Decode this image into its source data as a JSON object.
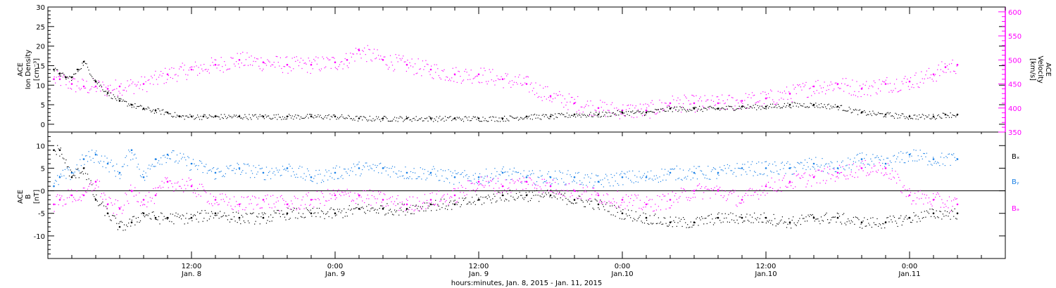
{
  "chart_data": [
    {
      "type": "scatter",
      "panel": "top",
      "title": "",
      "xlabel": "hours:minutes, Jan.  8, 2015 - Jan. 11, 2015",
      "ylabel_lines": [
        "ACE",
        "Ion Density",
        "[cm⁻³]"
      ],
      "ylabel2_lines": [
        "ACE",
        "Velocity",
        "[km/s]"
      ],
      "xlim_hours": [
        0,
        80
      ],
      "ylim": [
        -2,
        30
      ],
      "ylim2": [
        350,
        610
      ],
      "yticks": [
        "0",
        "5",
        "10",
        "15",
        "20",
        "25",
        "30"
      ],
      "yticks2": [
        "350",
        "400",
        "450",
        "500",
        "550",
        "600"
      ],
      "series": [
        {
          "color": "#000000",
          "axis": "left",
          "x": [
            0.5,
            1,
            1.5,
            2,
            2.5,
            3,
            4,
            5,
            6,
            7,
            8,
            9,
            10,
            11,
            12,
            13,
            14,
            16,
            18,
            20,
            22,
            24,
            26,
            28,
            30,
            32,
            34,
            36,
            38,
            40,
            42,
            44,
            46,
            48,
            50,
            52,
            54,
            56,
            58,
            60,
            62,
            64,
            66,
            68,
            70,
            72,
            74,
            75,
            76
          ],
          "y": [
            14,
            13,
            12,
            12,
            14,
            16,
            11,
            8,
            6,
            5,
            4,
            3.5,
            3,
            2,
            2,
            2,
            2,
            2,
            2,
            2,
            2,
            2,
            1.5,
            1.5,
            1.5,
            1.5,
            1.5,
            1.5,
            1.5,
            2,
            2,
            2.5,
            2.5,
            3,
            3,
            4,
            4,
            4,
            4.5,
            4.5,
            5,
            5,
            4.5,
            3,
            2.5,
            2,
            2,
            2.5,
            2.5
          ]
        },
        {
          "color": "#ff00ff",
          "axis": "right",
          "x": [
            0.5,
            1,
            2,
            3,
            4,
            5,
            6,
            8,
            10,
            12,
            14,
            16,
            18,
            20,
            22,
            24,
            25,
            26,
            28,
            30,
            32,
            34,
            36,
            38,
            40,
            42,
            44,
            46,
            48,
            50,
            52,
            54,
            56,
            58,
            60,
            62,
            64,
            66,
            68,
            70,
            72,
            74,
            75,
            76
          ],
          "y": [
            460,
            460,
            450,
            445,
            445,
            440,
            445,
            450,
            470,
            480,
            490,
            500,
            495,
            490,
            490,
            495,
            500,
            520,
            500,
            490,
            480,
            470,
            470,
            460,
            450,
            425,
            410,
            400,
            395,
            395,
            410,
            410,
            410,
            415,
            420,
            430,
            445,
            450,
            440,
            450,
            455,
            470,
            485,
            490
          ]
        }
      ]
    },
    {
      "type": "scatter",
      "panel": "bottom",
      "title": "",
      "xlabel": "hours:minutes, Jan.  8, 2015 - Jan. 11, 2015",
      "ylabel_lines": [
        "ACE",
        "B",
        "[nT]"
      ],
      "xlim_hours": [
        0,
        80
      ],
      "ylim": [
        -15,
        13
      ],
      "yticks": [
        "-10",
        "-5",
        "0",
        "5",
        "10"
      ],
      "zero_line": true,
      "series": [
        {
          "name": "Bx",
          "color": "#000000",
          "x": [
            0.5,
            1,
            2,
            3,
            4,
            5,
            6,
            7,
            8,
            9,
            10,
            12,
            14,
            16,
            18,
            20,
            22,
            24,
            26,
            28,
            30,
            32,
            34,
            36,
            38,
            40,
            42,
            44,
            46,
            48,
            50,
            52,
            54,
            56,
            58,
            60,
            62,
            64,
            66,
            68,
            70,
            72,
            74,
            76
          ],
          "y": [
            9,
            9,
            3,
            5,
            -2,
            -5,
            -8,
            -7,
            -5,
            -6,
            -6,
            -6,
            -5,
            -6,
            -6,
            -5,
            -5,
            -5,
            -4,
            -4,
            -4,
            -3,
            -3,
            -2,
            -1,
            -1,
            -1,
            -2,
            -3,
            -5,
            -6,
            -7,
            -7,
            -6,
            -6,
            -6,
            -7,
            -6,
            -6,
            -7,
            -7,
            -6,
            -5,
            -5
          ]
        },
        {
          "name": "By",
          "color": "#1a80e6",
          "x": [
            0.5,
            1,
            2,
            3,
            4,
            5,
            6,
            7,
            8,
            9,
            10,
            12,
            14,
            16,
            18,
            20,
            22,
            24,
            26,
            28,
            30,
            32,
            34,
            36,
            38,
            40,
            42,
            44,
            46,
            48,
            50,
            52,
            54,
            56,
            58,
            60,
            62,
            64,
            66,
            68,
            70,
            72,
            74,
            76
          ],
          "y": [
            1,
            3,
            4,
            7,
            8,
            6,
            4,
            9,
            3,
            7,
            8,
            6,
            4,
            5,
            4,
            5,
            3,
            4,
            5,
            5,
            4,
            4,
            3,
            3,
            4,
            3,
            3,
            3,
            2,
            3,
            3,
            4,
            4,
            4,
            5,
            5,
            5,
            6,
            5,
            7,
            6,
            8,
            7,
            7
          ]
        },
        {
          "name": "Bz",
          "color": "#ff00ff",
          "x": [
            0.5,
            1,
            2,
            3,
            4,
            5,
            6,
            7,
            8,
            9,
            10,
            12,
            14,
            16,
            18,
            20,
            22,
            24,
            26,
            28,
            30,
            32,
            34,
            36,
            38,
            40,
            42,
            44,
            46,
            48,
            50,
            52,
            54,
            56,
            58,
            60,
            62,
            64,
            66,
            68,
            70,
            72,
            74,
            76
          ],
          "y": [
            -3,
            -2,
            -1,
            -1,
            2,
            -3,
            -4,
            0,
            -2,
            -1,
            2,
            1,
            -2,
            -3,
            -2,
            -3,
            -2,
            -1,
            -1,
            -2,
            -3,
            -2,
            -1,
            2,
            1,
            2,
            1,
            0,
            -1,
            -2,
            -3,
            -2,
            0,
            0,
            -2,
            1,
            2,
            3,
            4,
            5,
            5,
            -1,
            -2,
            -3
          ]
        }
      ],
      "legend": [
        "Bₓ",
        "Bᵧ",
        "Bₔ"
      ]
    }
  ],
  "xaxis": {
    "ticks": [
      {
        "hour": 12,
        "line1": "12:00",
        "line2": "Jan. 8"
      },
      {
        "hour": 24,
        "line1": "0:00",
        "line2": "Jan. 9"
      },
      {
        "hour": 36,
        "line1": "12:00",
        "line2": "Jan. 9"
      },
      {
        "hour": 48,
        "line1": "0:00",
        "line2": "Jan.10"
      },
      {
        "hour": 60,
        "line1": "12:00",
        "line2": "Jan.10"
      },
      {
        "hour": 72,
        "line1": "0:00",
        "line2": "Jan.11"
      }
    ]
  },
  "colors": {
    "black": "#000000",
    "magenta": "#ff00ff",
    "blue": "#1a80e6"
  }
}
